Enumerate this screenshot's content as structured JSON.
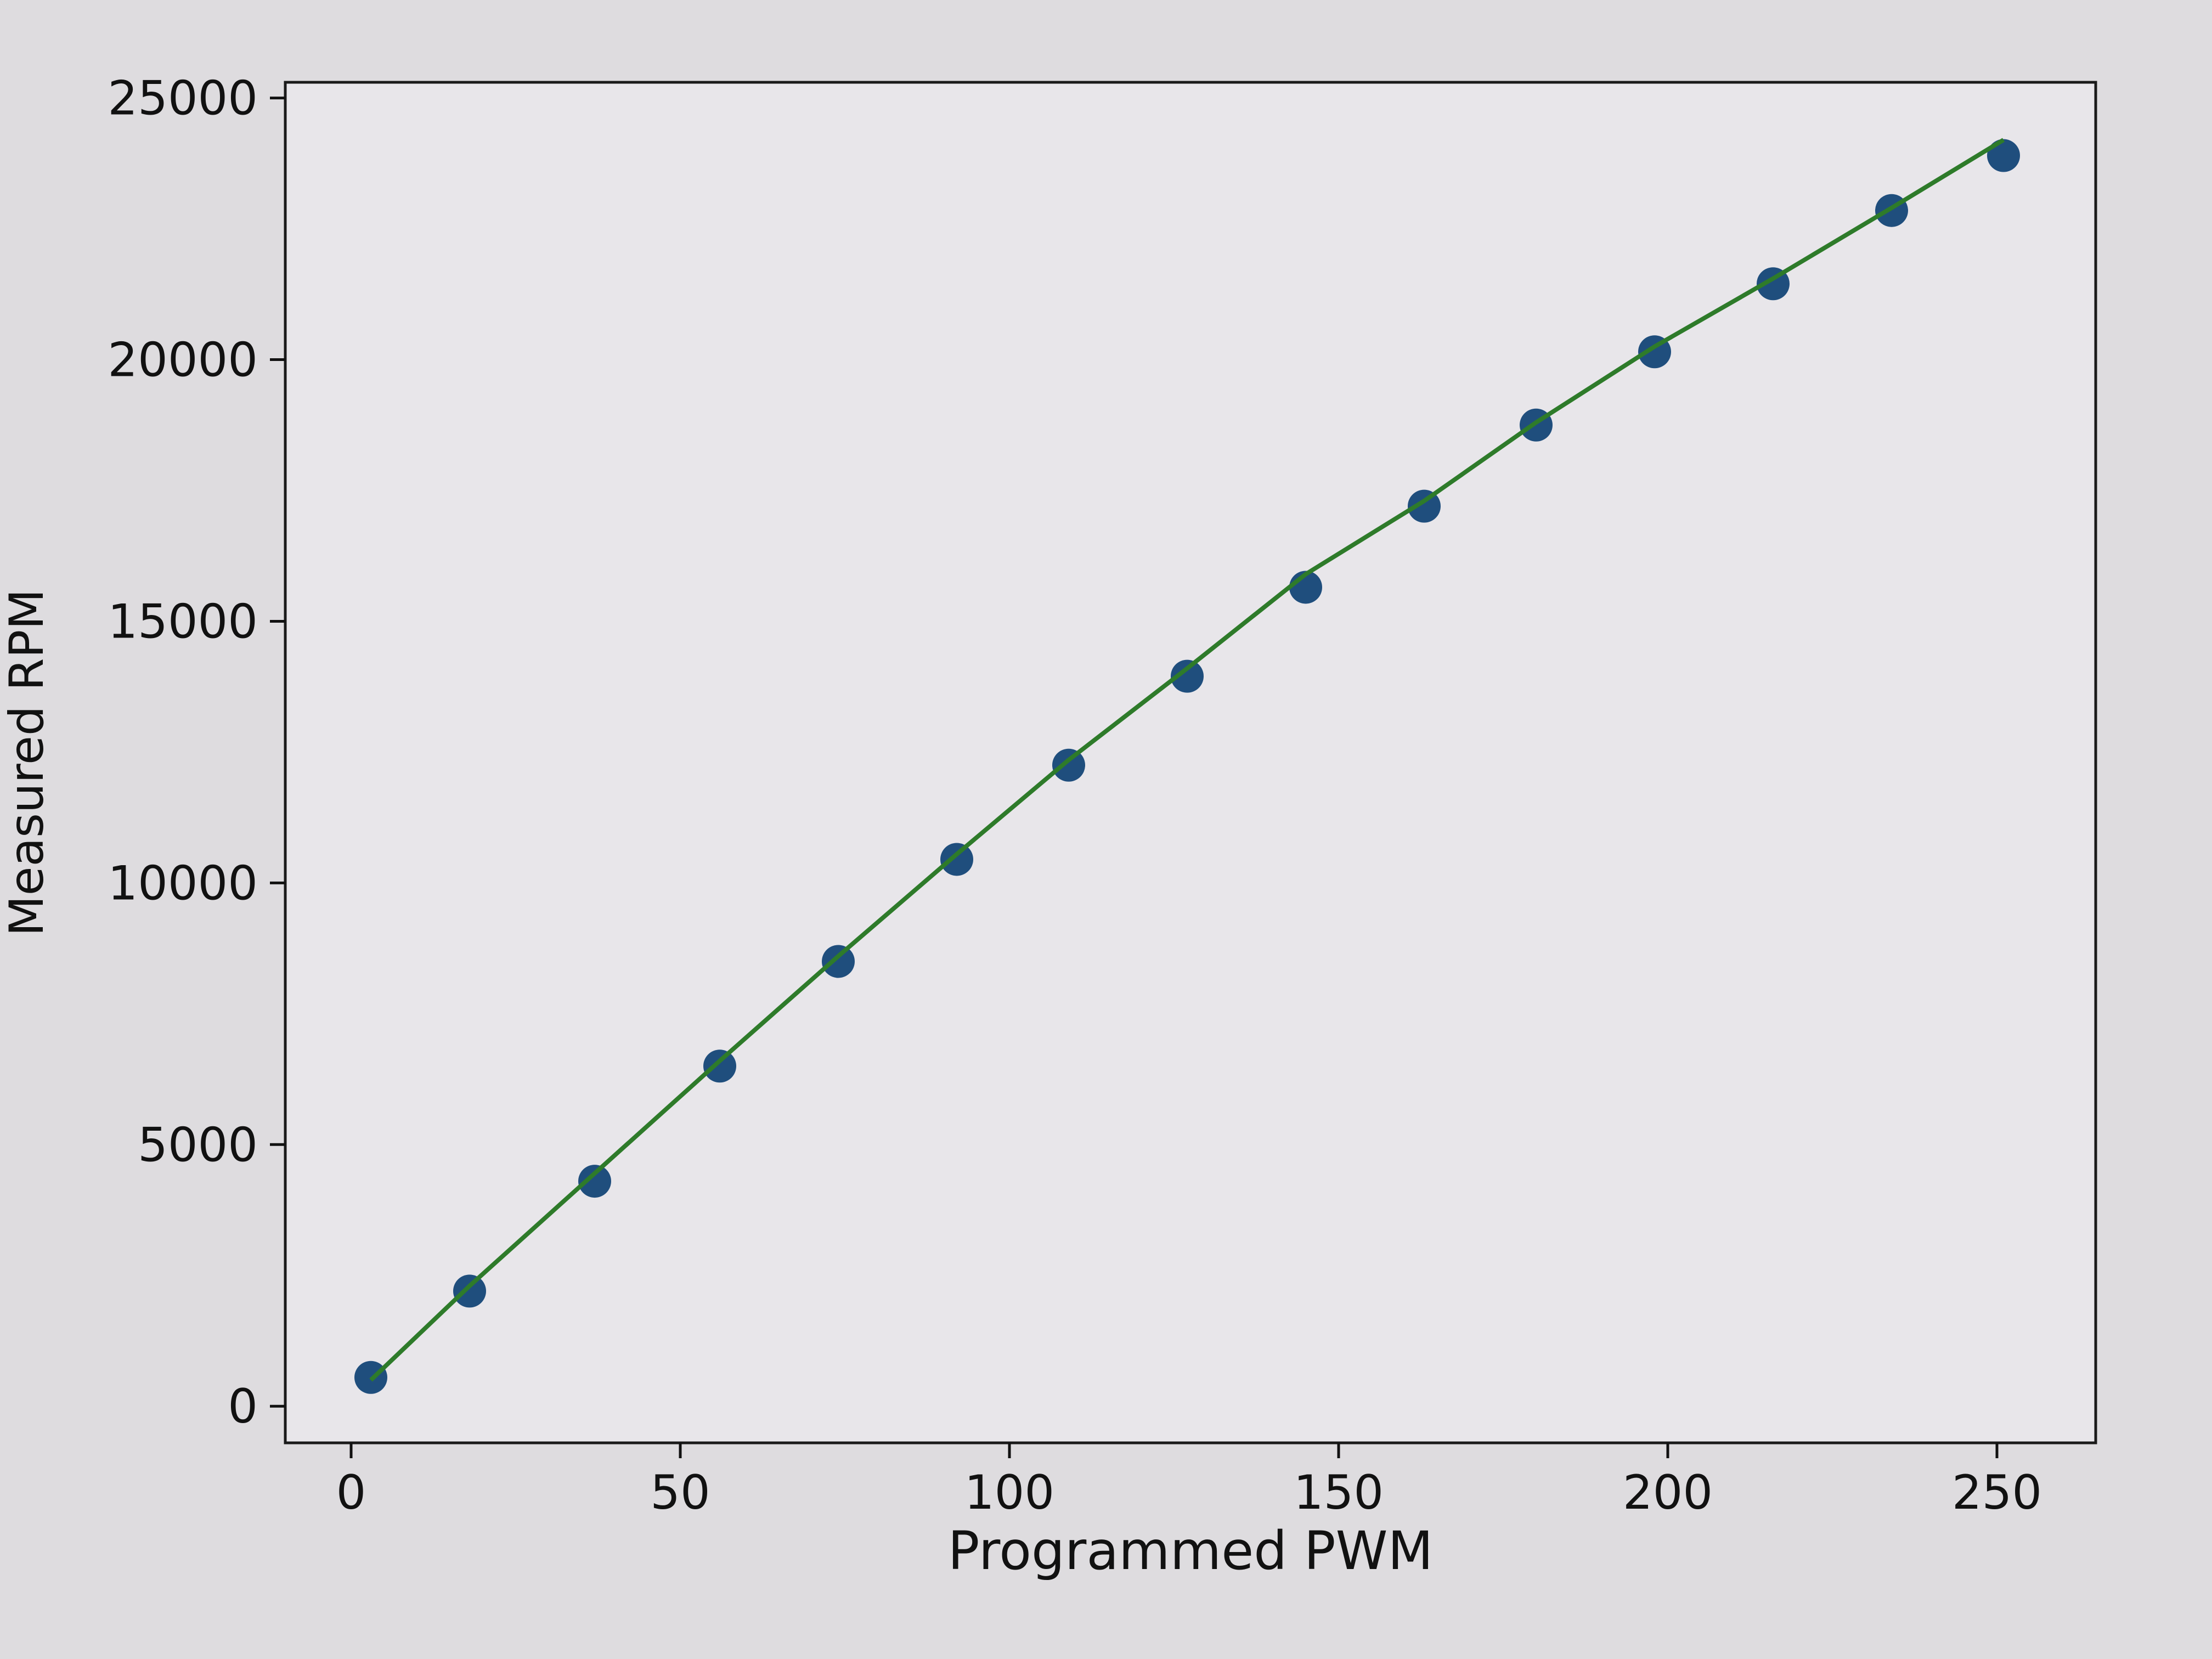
{
  "chart_data": {
    "type": "line",
    "title": "",
    "xlabel": "Programmed PWM",
    "ylabel": "Measured RPM",
    "xlim": [
      -10,
      265
    ],
    "ylim": [
      -700,
      25300
    ],
    "xticks": [
      0,
      50,
      100,
      150,
      200,
      250
    ],
    "yticks": [
      0,
      5000,
      10000,
      15000,
      20000,
      25000
    ],
    "grid": false,
    "legend": "none",
    "series": [
      {
        "kind": "scatter",
        "color": "#1f4e7d",
        "x": [
          3,
          18,
          37,
          56,
          74,
          92,
          109,
          127,
          145,
          163,
          180,
          198,
          216,
          234,
          251
        ],
        "y": [
          550,
          2200,
          4300,
          6500,
          8500,
          10450,
          12250,
          13950,
          15650,
          17200,
          18750,
          20150,
          21450,
          22850,
          23900
        ]
      },
      {
        "kind": "line",
        "color": "#2e7b2a",
        "x": [
          3,
          18,
          37,
          56,
          74,
          92,
          109,
          127,
          145,
          163,
          180,
          198,
          216,
          234,
          251
        ],
        "y": [
          500,
          2300,
          4450,
          6600,
          8600,
          10550,
          12350,
          14100,
          15900,
          17300,
          18800,
          20250,
          21550,
          22900,
          24200
        ]
      }
    ]
  }
}
